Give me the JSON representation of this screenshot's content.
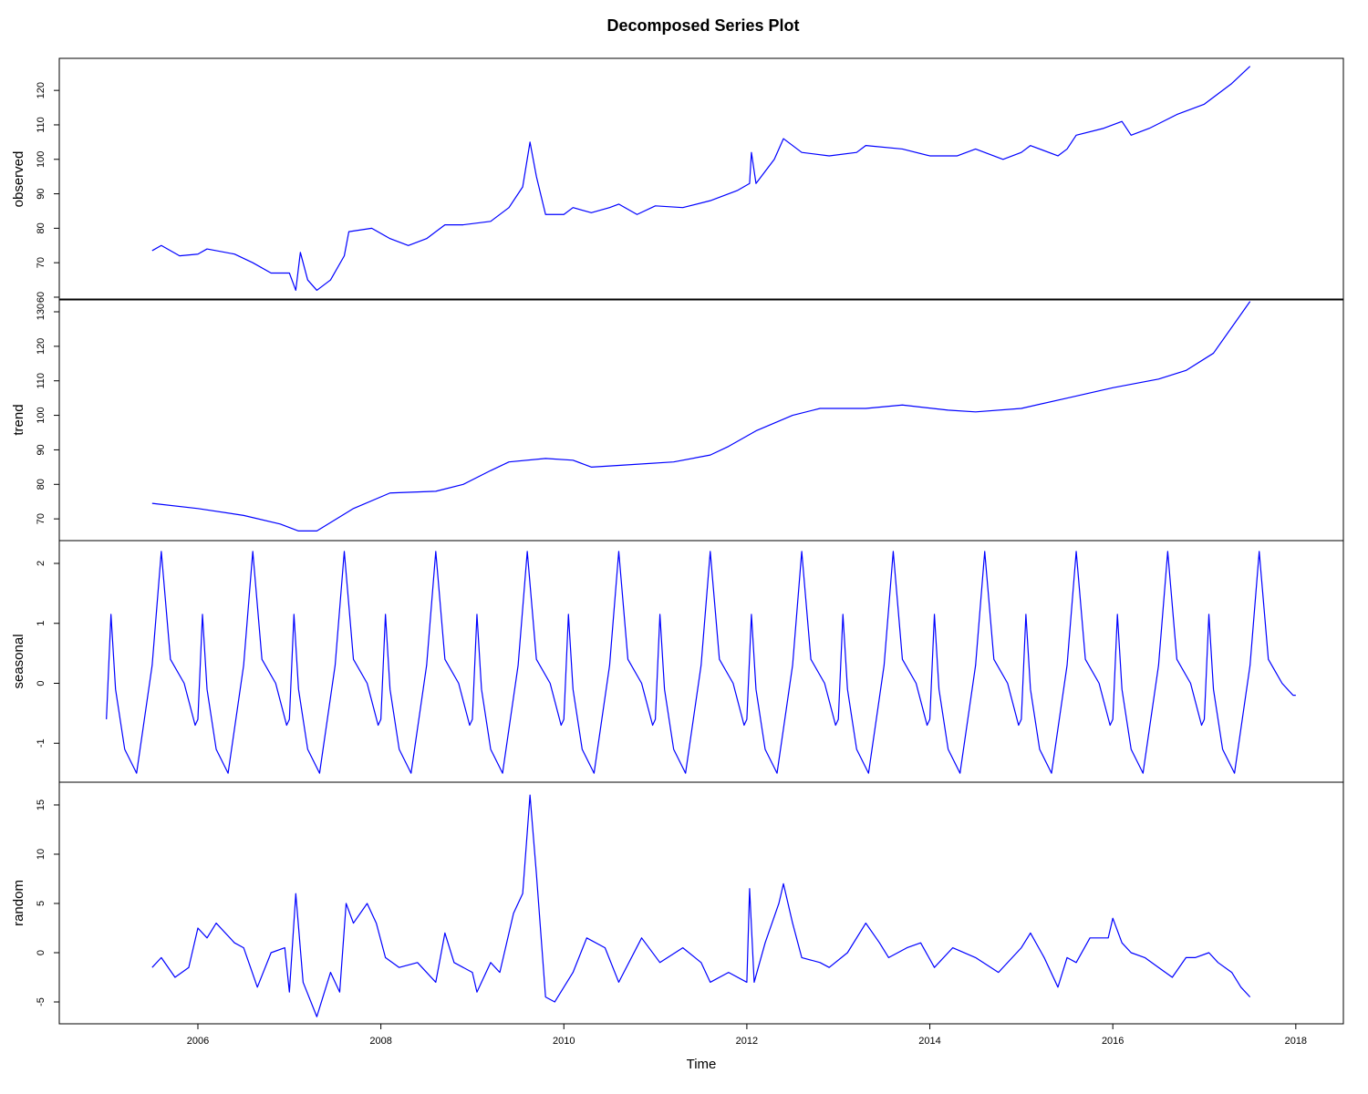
{
  "chart_data": {
    "type": "line",
    "title": "Decomposed Series Plot",
    "xlabel": "Time",
    "color": "#0000ff",
    "xlim": [
      2004.485,
      2018.52
    ],
    "xticks": [
      2006,
      2008,
      2010,
      2012,
      2014,
      2016,
      2018
    ],
    "panels": [
      {
        "name": "observed",
        "ylim": [
          59.2,
          129.3
        ],
        "yticks": [
          60,
          70,
          80,
          90,
          100,
          110,
          120
        ],
        "x": [
          2005.5,
          2005.6,
          2005.8,
          2006.0,
          2006.1,
          2006.4,
          2006.6,
          2006.8,
          2007.0,
          2007.07,
          2007.12,
          2007.2,
          2007.3,
          2007.45,
          2007.6,
          2007.65,
          2007.9,
          2008.1,
          2008.3,
          2008.5,
          2008.7,
          2008.9,
          2009.2,
          2009.4,
          2009.55,
          2009.63,
          2009.7,
          2009.8,
          2010.0,
          2010.1,
          2010.3,
          2010.5,
          2010.6,
          2010.8,
          2011.0,
          2011.3,
          2011.6,
          2011.9,
          2012.03,
          2012.05,
          2012.1,
          2012.3,
          2012.4,
          2012.6,
          2012.9,
          2013.2,
          2013.3,
          2013.7,
          2014.0,
          2014.3,
          2014.5,
          2014.8,
          2015.0,
          2015.1,
          2015.4,
          2015.5,
          2015.6,
          2015.9,
          2016.1,
          2016.2,
          2016.4,
          2016.7,
          2017.0,
          2017.3,
          2017.5
        ],
        "values": [
          73.5,
          75,
          72,
          72.5,
          74,
          72.5,
          70,
          67,
          67,
          62,
          73,
          65,
          62,
          65,
          72,
          79,
          80,
          77,
          75,
          77,
          81,
          81,
          82,
          86,
          92,
          105,
          95,
          84,
          84,
          86,
          84.5,
          86,
          87,
          84,
          86.5,
          86,
          88,
          91,
          93,
          102,
          93,
          100,
          106,
          102,
          101,
          102,
          104,
          103,
          101,
          101,
          103,
          100,
          102,
          104,
          101,
          103,
          107,
          109,
          111,
          107,
          109,
          113,
          116,
          122,
          127
        ]
      },
      {
        "name": "trend",
        "ylim": [
          63.7,
          133.7
        ],
        "yticks": [
          70,
          80,
          90,
          100,
          110,
          120,
          130
        ],
        "x": [
          2005.5,
          2006.0,
          2006.5,
          2006.9,
          2007.1,
          2007.3,
          2007.7,
          2008.1,
          2008.6,
          2008.9,
          2009.2,
          2009.4,
          2009.8,
          2010.1,
          2010.3,
          2010.6,
          2011.2,
          2011.6,
          2011.8,
          2012.1,
          2012.5,
          2012.8,
          2013.3,
          2013.7,
          2014.2,
          2014.5,
          2015.0,
          2015.5,
          2016.0,
          2016.5,
          2016.8,
          2017.1,
          2017.5
        ],
        "values": [
          74.5,
          73,
          71,
          68.5,
          66.5,
          66.5,
          73,
          77.5,
          78,
          80,
          84,
          86.5,
          87.5,
          87,
          85,
          85.5,
          86.5,
          88.5,
          91,
          95.5,
          100,
          102,
          102,
          103,
          101.5,
          101,
          102,
          105,
          108,
          110.5,
          113,
          118,
          133
        ]
      },
      {
        "name": "seasonal",
        "ylim": [
          -1.65,
          2.38
        ],
        "yticks": [
          -1,
          0,
          1,
          2
        ],
        "x": [
          2005,
          2005.05,
          2005.1,
          2005.2,
          2005.33,
          2005.5,
          2005.6,
          2005.7,
          2005.85,
          2005.97,
          2006,
          2006.05,
          2006.1,
          2006.2,
          2006.33,
          2006.5,
          2006.6,
          2006.7,
          2006.85,
          2006.97,
          2007,
          2007.05,
          2007.1,
          2007.2,
          2007.33,
          2007.5,
          2007.6,
          2007.7,
          2007.85,
          2007.97,
          2008,
          2008.05,
          2008.1,
          2008.2,
          2008.33,
          2008.5,
          2008.6,
          2008.7,
          2008.85,
          2008.97,
          2009,
          2009.05,
          2009.1,
          2009.2,
          2009.33,
          2009.5,
          2009.6,
          2009.7,
          2009.85,
          2009.97,
          2010,
          2010.05,
          2010.1,
          2010.2,
          2010.33,
          2010.5,
          2010.6,
          2010.7,
          2010.85,
          2010.97,
          2011,
          2011.05,
          2011.1,
          2011.2,
          2011.33,
          2011.5,
          2011.6,
          2011.7,
          2011.85,
          2011.97,
          2012,
          2012.05,
          2012.1,
          2012.2,
          2012.33,
          2012.5,
          2012.6,
          2012.7,
          2012.85,
          2012.97,
          2013,
          2013.05,
          2013.1,
          2013.2,
          2013.33,
          2013.5,
          2013.6,
          2013.7,
          2013.85,
          2013.97,
          2014,
          2014.05,
          2014.1,
          2014.2,
          2014.33,
          2014.5,
          2014.6,
          2014.7,
          2014.85,
          2014.97,
          2015,
          2015.05,
          2015.1,
          2015.2,
          2015.33,
          2015.5,
          2015.6,
          2015.7,
          2015.85,
          2015.97,
          2016,
          2016.05,
          2016.1,
          2016.2,
          2016.33,
          2016.5,
          2016.6,
          2016.7,
          2016.85,
          2016.97,
          2017,
          2017.05,
          2017.1,
          2017.2,
          2017.33,
          2017.5,
          2017.6,
          2017.7,
          2017.85,
          2017.97,
          2018
        ],
        "values": [
          -0.6,
          1.15,
          -0.1,
          -1.1,
          -1.5,
          0.3,
          2.2,
          0.4,
          0,
          -0.7,
          -0.6,
          1.15,
          -0.1,
          -1.1,
          -1.5,
          0.3,
          2.2,
          0.4,
          0,
          -0.7,
          -0.6,
          1.15,
          -0.1,
          -1.1,
          -1.5,
          0.3,
          2.2,
          0.4,
          0,
          -0.7,
          -0.6,
          1.15,
          -0.1,
          -1.1,
          -1.5,
          0.3,
          2.2,
          0.4,
          0,
          -0.7,
          -0.6,
          1.15,
          -0.1,
          -1.1,
          -1.5,
          0.3,
          2.2,
          0.4,
          0,
          -0.7,
          -0.6,
          1.15,
          -0.1,
          -1.1,
          -1.5,
          0.3,
          2.2,
          0.4,
          0,
          -0.7,
          -0.6,
          1.15,
          -0.1,
          -1.1,
          -1.5,
          0.3,
          2.2,
          0.4,
          0,
          -0.7,
          -0.6,
          1.15,
          -0.1,
          -1.1,
          -1.5,
          0.3,
          2.2,
          0.4,
          0,
          -0.7,
          -0.6,
          1.15,
          -0.1,
          -1.1,
          -1.5,
          0.3,
          2.2,
          0.4,
          0,
          -0.7,
          -0.6,
          1.15,
          -0.1,
          -1.1,
          -1.5,
          0.3,
          2.2,
          0.4,
          0,
          -0.7,
          -0.6,
          1.15,
          -0.1,
          -1.1,
          -1.5,
          0.3,
          2.2,
          0.4,
          0,
          -0.7,
          -0.6,
          1.15,
          -0.1,
          -1.1,
          -1.5,
          0.3,
          2.2,
          0.4,
          0,
          -0.7,
          -0.6,
          1.15,
          -0.1,
          -1.1,
          -1.5,
          0.3,
          2.2,
          0.4,
          0,
          -0.2,
          -0.2
        ]
      },
      {
        "name": "random",
        "ylim": [
          -7.22,
          17.31
        ],
        "yticks": [
          -5,
          0,
          5,
          10,
          15
        ],
        "x": [
          2005.5,
          2005.6,
          2005.75,
          2005.9,
          2006.0,
          2006.1,
          2006.2,
          2006.4,
          2006.5,
          2006.65,
          2006.8,
          2006.95,
          2007.0,
          2007.07,
          2007.15,
          2007.3,
          2007.45,
          2007.55,
          2007.62,
          2007.7,
          2007.85,
          2007.95,
          2008.05,
          2008.2,
          2008.4,
          2008.6,
          2008.7,
          2008.8,
          2009.0,
          2009.05,
          2009.2,
          2009.3,
          2009.45,
          2009.55,
          2009.63,
          2009.7,
          2009.8,
          2009.9,
          2010.1,
          2010.25,
          2010.45,
          2010.6,
          2010.85,
          2011.05,
          2011.3,
          2011.5,
          2011.6,
          2011.8,
          2012.0,
          2012.03,
          2012.08,
          2012.2,
          2012.35,
          2012.4,
          2012.5,
          2012.6,
          2012.8,
          2012.9,
          2013.1,
          2013.3,
          2013.45,
          2013.55,
          2013.75,
          2013.9,
          2014.05,
          2014.25,
          2014.5,
          2014.75,
          2015.0,
          2015.1,
          2015.25,
          2015.4,
          2015.5,
          2015.6,
          2015.75,
          2015.95,
          2016.0,
          2016.1,
          2016.2,
          2016.35,
          2016.5,
          2016.65,
          2016.8,
          2016.9,
          2017.05,
          2017.15,
          2017.3,
          2017.4,
          2017.5
        ],
        "values": [
          -1.5,
          -0.5,
          -2.5,
          -1.5,
          2.5,
          1.5,
          3,
          1,
          0.5,
          -3.5,
          0,
          0.5,
          -4,
          6,
          -3,
          -6.5,
          -2,
          -4,
          5,
          3,
          5,
          3,
          -0.5,
          -1.5,
          -1,
          -3,
          2,
          -1,
          -2,
          -4,
          -1,
          -2,
          4,
          6,
          16,
          8,
          -4.5,
          -5,
          -2,
          1.5,
          0.5,
          -3,
          1.5,
          -1,
          0.5,
          -1,
          -3,
          -2,
          -3,
          6.5,
          -3,
          1,
          5,
          7,
          3,
          -0.5,
          -1,
          -1.5,
          0,
          3,
          1,
          -0.5,
          0.5,
          1,
          -1.5,
          0.5,
          -0.5,
          -2,
          0.5,
          2,
          -0.5,
          -3.5,
          -0.5,
          -1,
          1.5,
          1.5,
          3.5,
          1,
          0,
          -0.5,
          -1.5,
          -2.5,
          -0.5,
          -0.5,
          0,
          -1,
          -2,
          -3.5,
          -4.5
        ]
      }
    ]
  }
}
